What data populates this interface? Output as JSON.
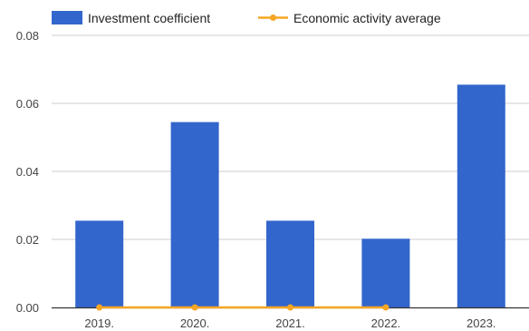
{
  "chart_data": {
    "type": "bar",
    "categories": [
      "2019.",
      "2020.",
      "2021.",
      "2022.",
      "2023."
    ],
    "series": [
      {
        "name": "Investment coefficient",
        "type": "bar",
        "color": "#3366cc",
        "values": [
          0.0255,
          0.0545,
          0.0255,
          0.0202,
          0.0655
        ]
      },
      {
        "name": "Economic activity average",
        "type": "line",
        "color": "#f5a623",
        "values": [
          0.0,
          0.0,
          0.0,
          0.0,
          null
        ]
      }
    ],
    "yticks": [
      "0.00",
      "0.02",
      "0.04",
      "0.06",
      "0.08"
    ],
    "ylim": [
      0,
      0.08
    ],
    "grid": true,
    "legend_position": "top"
  }
}
